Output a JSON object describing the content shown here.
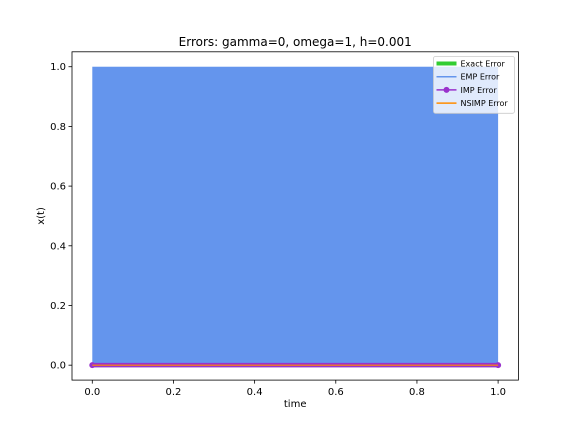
{
  "chart_data": {
    "type": "line",
    "title": "Errors: gamma=0, omega=1, h=0.001",
    "xlabel": "time",
    "ylabel": "x(t)",
    "xlim": [
      -0.05,
      1.05
    ],
    "ylim": [
      -0.05,
      1.05
    ],
    "xticks": [
      0.0,
      0.2,
      0.4,
      0.6,
      0.8,
      1.0
    ],
    "xtick_labels": [
      "0.0",
      "0.2",
      "0.4",
      "0.6",
      "0.8",
      "1.0"
    ],
    "yticks": [
      0.0,
      0.2,
      0.4,
      0.6,
      0.8,
      1.0
    ],
    "ytick_labels": [
      "0.0",
      "0.2",
      "0.4",
      "0.6",
      "0.8",
      "1.0"
    ],
    "grid": false,
    "legend": "top-right",
    "series": [
      {
        "name": "Exact Error",
        "color": "#32cd32",
        "style": "thick-line",
        "x": [
          0.0,
          0.2,
          0.4,
          0.6,
          0.8,
          1.0
        ],
        "y": [
          0.0,
          0.0,
          0.0,
          0.0,
          0.0,
          0.0
        ]
      },
      {
        "name": "EMP Error",
        "color": "#6495ed",
        "style": "oscillating-line",
        "x": [
          0.0,
          1.0
        ],
        "y_min": 0.0,
        "y_max": 1.0
      },
      {
        "name": "IMP Error",
        "color": "#9932cc",
        "style": "line-with-circle-markers",
        "x": [
          0.0,
          0.2,
          0.4,
          0.6,
          0.8,
          1.0
        ],
        "y": [
          0.0,
          0.0,
          0.0,
          0.0,
          0.0,
          0.0
        ]
      },
      {
        "name": "NSIMP Error",
        "color": "#ff8c00",
        "style": "line",
        "x": [
          0.0,
          0.2,
          0.4,
          0.6,
          0.8,
          1.0
        ],
        "y": [
          0.0,
          0.0,
          0.0,
          0.0,
          0.0,
          0.0
        ]
      }
    ]
  }
}
